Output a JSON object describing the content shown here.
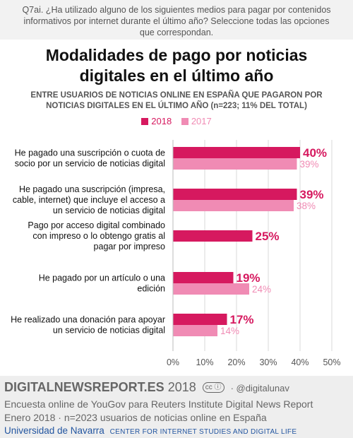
{
  "question": "Q7ai. ¿Ha utilizado alguno de los siguientes medios para pagar por contenidos informativos por internet durante el último año? Seleccione todas las opciones que correspondan.",
  "footer": {
    "brand": "DIGITALNEWSREPORT.ES",
    "year": "2018",
    "cc": "cc ⓘ",
    "handle": "· @digitalunav",
    "source_line1": "Encuesta online de YouGov para Reuters Institute Digital News Report",
    "source_line2": "Enero 2018 · n=2023 usuarios de noticias online en España",
    "university": "Universidad de Navarra",
    "center": "CENTER FOR INTERNET STUDIES AND DIGITAL LIFE"
  },
  "chart_data": {
    "type": "bar",
    "orientation": "horizontal",
    "title": "Modalidades de pago por noticias digitales en el último año",
    "subtitle": "ENTRE USUARIOS DE NOTICIAS ONLINE EN ESPAÑA QUE PAGARON POR NOTICIAS DIGITALES EN EL ÚLTIMO AÑO (n=223; 11% DEL TOTAL)",
    "categories": [
      "He pagado una suscripción o cuota de socio por un servicio de noticias digital",
      "He pagado una suscripción (impresa, cable, internet) que incluye el acceso a un servicio de noticias digital",
      "Pago por acceso digital combinado con impreso o lo obtengo gratis al pagar por impreso",
      "He pagado por un artículo o una edición",
      "He realizado una donación para apoyar un servicio de noticias digital"
    ],
    "category_lines": [
      [
        "He pagado una suscripción o cuota de",
        "socio por un servicio de noticias digital"
      ],
      [
        "He pagado una suscripción (impresa,",
        "cable, internet) que incluye el acceso a",
        "un servicio de noticias digital"
      ],
      [
        "Pago por acceso digital combinado",
        "con impreso o lo obtengo gratis al",
        "pagar por impreso"
      ],
      [
        "He pagado por un artículo o una",
        "edición"
      ],
      [
        "He realizado una donación para apoyar",
        "un servicio de noticias digital"
      ]
    ],
    "series": [
      {
        "name": "2018",
        "color": "#d6195f",
        "values": [
          40,
          39,
          25,
          19,
          17
        ],
        "labels": [
          "40%",
          "39%",
          "25%",
          "19%",
          "17%"
        ]
      },
      {
        "name": "2017",
        "color": "#f08bb4",
        "values": [
          39,
          38,
          null,
          24,
          14
        ],
        "labels": [
          "39%",
          "38%",
          "",
          "24%",
          "14%"
        ]
      }
    ],
    "xlim": [
      0,
      50
    ],
    "xticks": [
      "0%",
      "10%",
      "20%",
      "30%",
      "40%",
      "50%"
    ],
    "xtick_values": [
      0,
      10,
      20,
      30,
      40,
      50
    ],
    "grid": true,
    "legend_position": "top"
  }
}
